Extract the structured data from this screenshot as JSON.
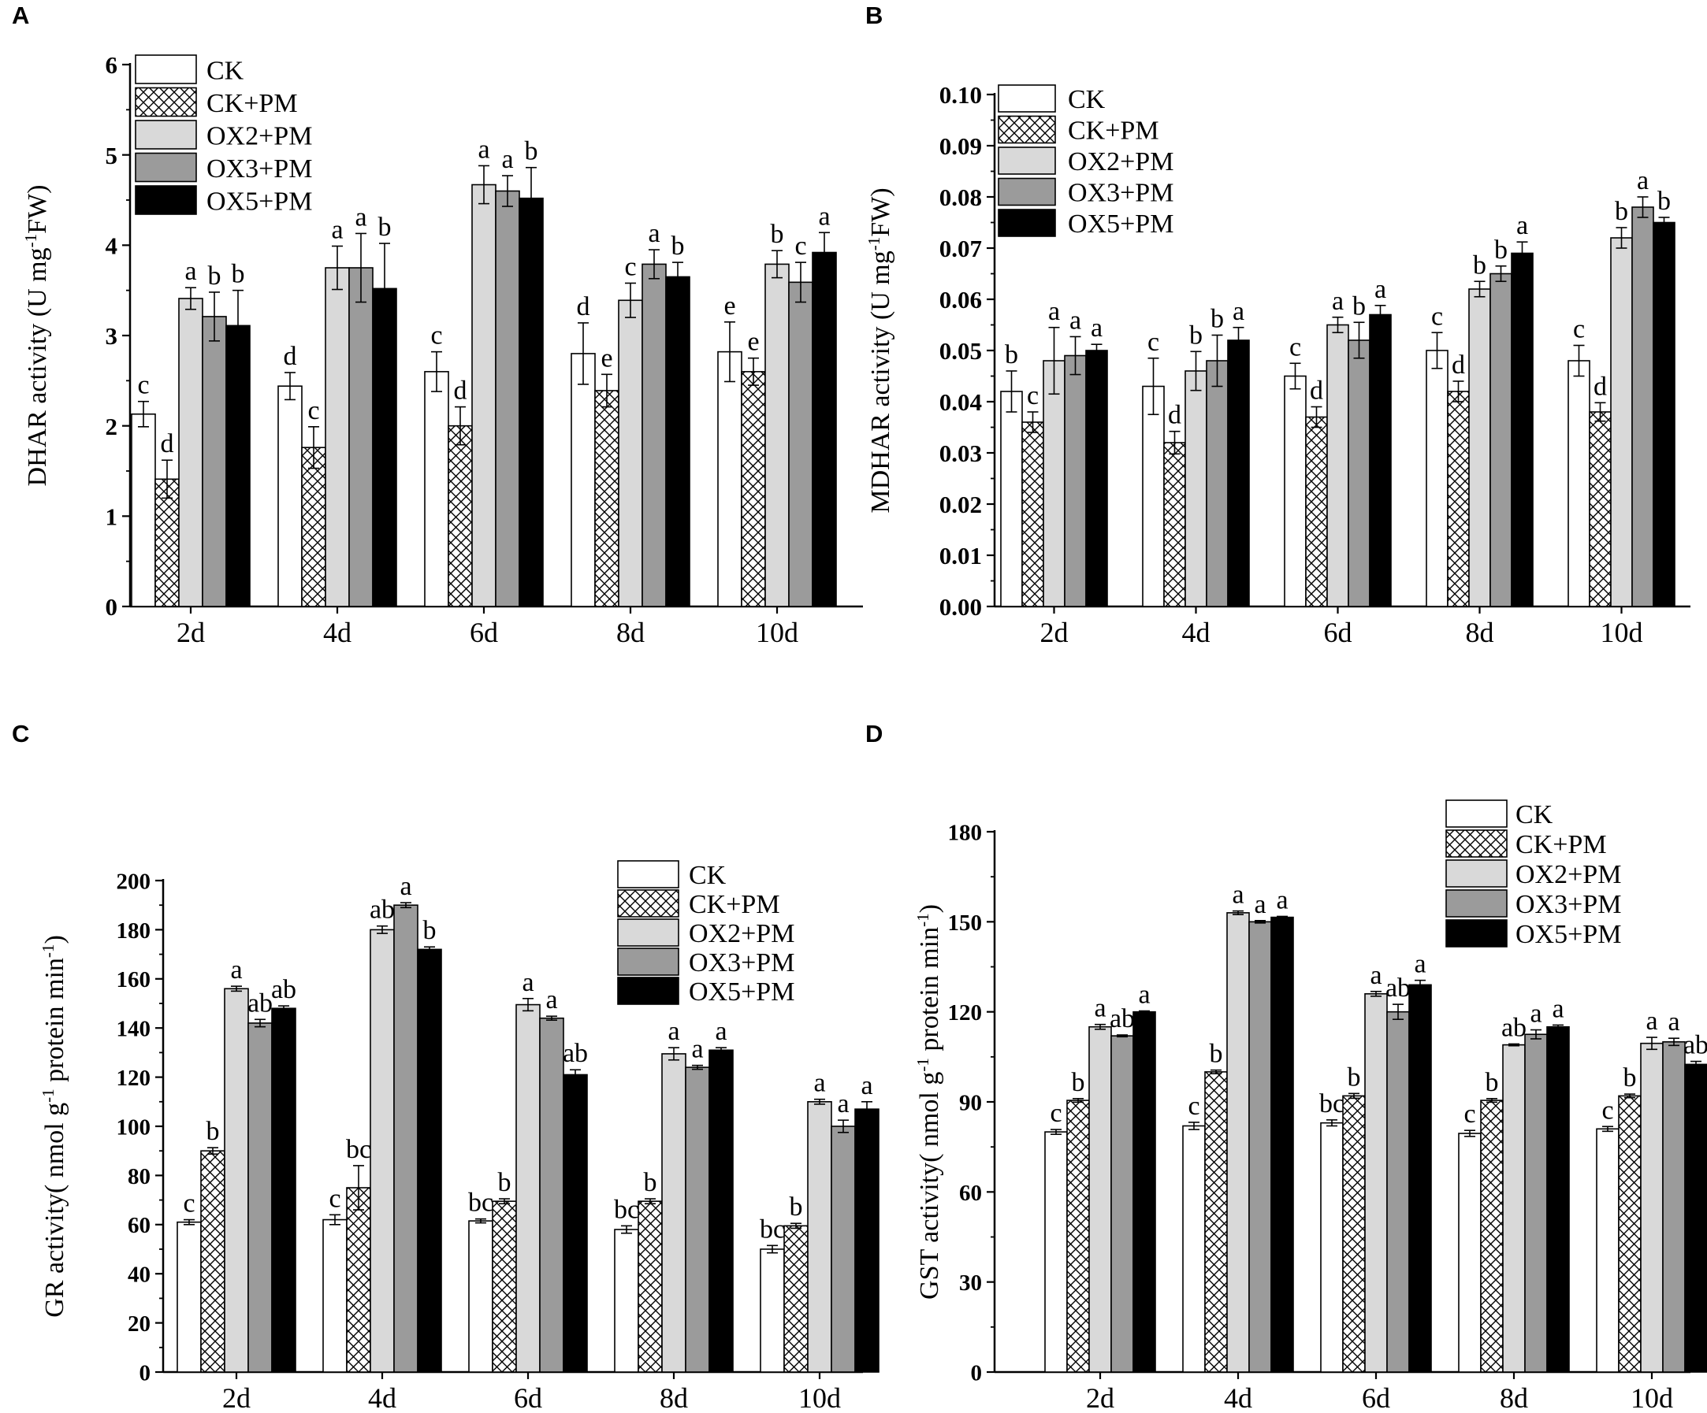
{
  "figure": {
    "series_names": [
      "CK",
      "CK+PM",
      "OX2+PM",
      "OX3+PM",
      "OX5+PM"
    ],
    "series_colors": [
      "#ffffff",
      "hatch",
      "#d9d9d9",
      "#9b9b9b",
      "#000000"
    ]
  },
  "chart_data": [
    {
      "panel": "A",
      "type": "bar",
      "ylabel_main": "DHAR activity (U mg",
      "ylabel_sup": "-1",
      "ylabel_tail": "FW)",
      "categories": [
        "2d",
        "4d",
        "6d",
        "8d",
        "10d"
      ],
      "ylim": [
        0,
        6
      ],
      "yticks": [
        0,
        1,
        2,
        3,
        4,
        5,
        6
      ],
      "ytick_labels": [
        "0",
        "1",
        "2",
        "3",
        "4",
        "5",
        "6"
      ],
      "legend": [
        "CK",
        "CK+PM",
        "OX2+PM",
        "OX3+PM",
        "OX5+PM"
      ],
      "series": [
        {
          "name": "CK",
          "values": [
            2.13,
            2.44,
            2.6,
            2.8,
            2.82
          ],
          "errors": [
            0.14,
            0.15,
            0.22,
            0.34,
            0.33
          ],
          "letters": [
            "c",
            "d",
            "c",
            "d",
            "e"
          ]
        },
        {
          "name": "CK+PM",
          "values": [
            1.41,
            1.76,
            2.0,
            2.39,
            2.6
          ],
          "errors": [
            0.21,
            0.23,
            0.21,
            0.18,
            0.15
          ],
          "letters": [
            "d",
            "c",
            "d",
            "e",
            "e"
          ]
        },
        {
          "name": "OX2+PM",
          "values": [
            3.41,
            3.75,
            4.67,
            3.39,
            3.79
          ],
          "errors": [
            0.12,
            0.24,
            0.21,
            0.19,
            0.15
          ],
          "letters": [
            "a",
            "a",
            "a",
            "c",
            "b"
          ]
        },
        {
          "name": "OX3+PM",
          "values": [
            3.21,
            3.75,
            4.6,
            3.79,
            3.59
          ],
          "errors": [
            0.27,
            0.38,
            0.17,
            0.16,
            0.22
          ],
          "letters": [
            "b",
            "a",
            "a",
            "a",
            "c"
          ]
        },
        {
          "name": "OX5+PM",
          "values": [
            3.11,
            3.52,
            4.52,
            3.65,
            3.92
          ],
          "errors": [
            0.39,
            0.5,
            0.34,
            0.16,
            0.22
          ],
          "letters": [
            "b",
            "b",
            "b",
            "b",
            "a"
          ]
        }
      ]
    },
    {
      "panel": "B",
      "type": "bar",
      "ylabel_main": "MDHAR activity (U mg",
      "ylabel_sup": "-1",
      "ylabel_tail": "FW)",
      "categories": [
        "2d",
        "4d",
        "6d",
        "8d",
        "10d"
      ],
      "ylim": [
        0,
        0.1
      ],
      "yticks": [
        0,
        0.01,
        0.02,
        0.03,
        0.04,
        0.05,
        0.06,
        0.07,
        0.08,
        0.09,
        0.1
      ],
      "ytick_labels": [
        "0.00",
        "0.01",
        "0.02",
        "0.03",
        "0.04",
        "0.05",
        "0.06",
        "0.07",
        "0.08",
        "0.09",
        "0.10"
      ],
      "legend": [
        "CK",
        "CK+PM",
        "OX2+PM",
        "OX3+PM",
        "OX5+PM"
      ],
      "series": [
        {
          "name": "CK",
          "values": [
            0.042,
            0.043,
            0.045,
            0.05,
            0.048
          ],
          "errors": [
            0.004,
            0.0055,
            0.0025,
            0.0035,
            0.003
          ],
          "letters": [
            "b",
            "c",
            "c",
            "c",
            "c"
          ]
        },
        {
          "name": "CK+PM",
          "values": [
            0.036,
            0.032,
            0.037,
            0.042,
            0.038
          ],
          "errors": [
            0.002,
            0.0022,
            0.002,
            0.002,
            0.0018
          ],
          "letters": [
            "c",
            "d",
            "d",
            "d",
            "d"
          ]
        },
        {
          "name": "OX2+PM",
          "values": [
            0.048,
            0.046,
            0.055,
            0.062,
            0.072
          ],
          "errors": [
            0.0065,
            0.0038,
            0.0015,
            0.0015,
            0.002
          ],
          "letters": [
            "a",
            "b",
            "a",
            "b",
            "b"
          ]
        },
        {
          "name": "OX3+PM",
          "values": [
            0.049,
            0.048,
            0.052,
            0.065,
            0.078
          ],
          "errors": [
            0.0037,
            0.005,
            0.0035,
            0.0015,
            0.002
          ],
          "letters": [
            "a",
            "b",
            "b",
            "b",
            "a"
          ]
        },
        {
          "name": "OX5+PM",
          "values": [
            0.05,
            0.052,
            0.057,
            0.069,
            0.075
          ],
          "errors": [
            0.0012,
            0.0025,
            0.0018,
            0.0022,
            0.001
          ],
          "letters": [
            "a",
            "a",
            "a",
            "a",
            "b"
          ]
        }
      ]
    },
    {
      "panel": "C",
      "type": "bar",
      "ylabel_main": "GR activity( nmol g",
      "ylabel_sup": "-1",
      "ylabel_tail": " protein min",
      "ylabel_sup2": "-1",
      "ylabel_end": ")",
      "categories": [
        "2d",
        "4d",
        "6d",
        "8d",
        "10d"
      ],
      "ylim": [
        0,
        200
      ],
      "yticks": [
        0,
        20,
        40,
        60,
        80,
        100,
        120,
        140,
        160,
        180,
        200
      ],
      "ytick_labels": [
        "0",
        "20",
        "40",
        "60",
        "80",
        "100",
        "120",
        "140",
        "160",
        "180",
        "200"
      ],
      "legend": [
        "CK",
        "CK+PM",
        "OX2+PM",
        "OX3+PM",
        "OX5+PM"
      ],
      "series": [
        {
          "name": "CK",
          "values": [
            61,
            62,
            61.5,
            58,
            50
          ],
          "errors": [
            1,
            2,
            0.8,
            1.5,
            1.5
          ],
          "letters": [
            "c",
            "c",
            "bc",
            "bc",
            "bc"
          ]
        },
        {
          "name": "CK+PM",
          "values": [
            90,
            75,
            69.5,
            69.5,
            59.5
          ],
          "errors": [
            1.3,
            9,
            1,
            1,
            1
          ],
          "letters": [
            "b",
            "bc",
            "b",
            "b",
            "b"
          ]
        },
        {
          "name": "OX2+PM",
          "values": [
            156,
            180,
            149.5,
            129.5,
            110
          ],
          "errors": [
            1,
            1.5,
            2.5,
            2.5,
            1
          ],
          "letters": [
            "a",
            "ab",
            "a",
            "a",
            "a"
          ]
        },
        {
          "name": "OX3+PM",
          "values": [
            142,
            190,
            144,
            124,
            100
          ],
          "errors": [
            1.5,
            1,
            0.8,
            0.8,
            2.5
          ],
          "letters": [
            "ab",
            "a",
            "a",
            "a",
            "a"
          ]
        },
        {
          "name": "OX5+PM",
          "values": [
            148,
            172,
            121,
            131,
            107
          ],
          "errors": [
            1,
            1,
            2,
            1,
            3
          ],
          "letters": [
            "ab",
            "b",
            "ab",
            "a",
            "a"
          ]
        }
      ]
    },
    {
      "panel": "D",
      "type": "bar",
      "ylabel_main": "GST activity( nmol g",
      "ylabel_sup": "-1",
      "ylabel_tail": " protein min",
      "ylabel_sup2": "-1",
      "ylabel_end": ")",
      "categories": [
        "2d",
        "4d",
        "6d",
        "8d",
        "10d"
      ],
      "ylim": [
        0,
        180
      ],
      "yticks": [
        0,
        30,
        60,
        90,
        120,
        150,
        180
      ],
      "ytick_labels": [
        "0",
        "30",
        "60",
        "90",
        "120",
        "150",
        "180"
      ],
      "legend": [
        "CK",
        "CK+PM",
        "OX2+PM",
        "OX3+PM",
        "OX5+PM"
      ],
      "series": [
        {
          "name": "CK",
          "values": [
            80,
            82,
            83,
            79.5,
            81
          ],
          "errors": [
            0.8,
            1.2,
            1,
            1,
            0.8
          ],
          "letters": [
            "c",
            "c",
            "bc",
            "c",
            "c"
          ]
        },
        {
          "name": "CK+PM",
          "values": [
            90.5,
            100,
            92,
            90.5,
            92
          ],
          "errors": [
            0.6,
            0.6,
            0.8,
            0.6,
            0.6
          ],
          "letters": [
            "b",
            "b",
            "b",
            "b",
            "b"
          ]
        },
        {
          "name": "OX2+PM",
          "values": [
            115,
            153,
            126,
            109,
            109.5
          ],
          "errors": [
            0.8,
            0.6,
            0.8,
            0.3,
            2
          ],
          "letters": [
            "a",
            "a",
            "a",
            "ab",
            "a"
          ]
        },
        {
          "name": "OX3+PM",
          "values": [
            112,
            150,
            120,
            112.5,
            110
          ],
          "errors": [
            0.3,
            0.4,
            2.5,
            1.5,
            1.2
          ],
          "letters": [
            "ab",
            "a",
            "ab",
            "a",
            "a"
          ]
        },
        {
          "name": "OX5+PM",
          "values": [
            120,
            151.5,
            129,
            115,
            102.5
          ],
          "errors": [
            0.3,
            0.3,
            1.5,
            0.6,
            1
          ],
          "letters": [
            "a",
            "a",
            "a",
            "a",
            "ab"
          ]
        }
      ]
    }
  ]
}
